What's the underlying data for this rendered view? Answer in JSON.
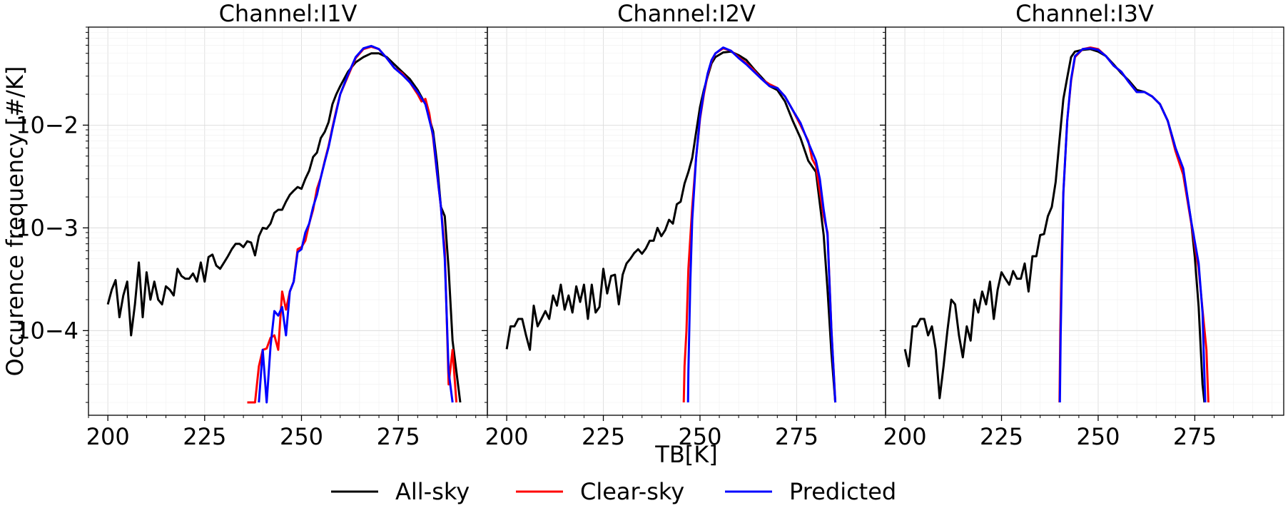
{
  "chart_data": [
    {
      "type": "line",
      "title": "Channel:I1V",
      "xlim": [
        195,
        298
      ],
      "ylim": [
        1.5e-05,
        0.09
      ],
      "yscale": "log",
      "xticks": [
        "200",
        "225",
        "250",
        "275"
      ],
      "yticks": [
        "10−4",
        "10−3",
        "10−2"
      ],
      "grid": "on (major and minor)",
      "series": [
        {
          "name": "All-sky",
          "color": "#000000",
          "x": [
            200,
            201,
            202,
            203,
            204,
            205,
            206,
            207,
            208,
            209,
            210,
            211,
            212,
            213,
            214,
            215,
            216,
            217,
            218,
            219,
            220,
            221,
            222,
            223,
            224,
            225,
            226,
            227,
            228,
            229,
            230,
            231,
            232,
            233,
            234,
            235,
            236,
            237,
            238,
            239,
            240,
            241,
            242,
            243,
            244,
            245,
            246,
            247,
            248,
            249,
            250,
            251,
            252,
            253,
            254,
            255,
            256,
            257,
            258,
            259,
            260,
            262,
            264,
            266,
            268,
            270,
            272,
            274,
            276,
            278,
            280,
            282,
            284,
            285,
            286,
            287,
            288,
            289,
            290,
            291
          ],
          "y": [
            0.00018,
            0.00025,
            0.00031,
            0.000135,
            0.00022,
            0.0003,
            9e-05,
            0.00018,
            0.00046,
            0.000135,
            0.00037,
            0.0002,
            0.0003,
            0.0002,
            0.00018,
            0.00027,
            0.00025,
            0.00022,
            0.0004,
            0.00034,
            0.00032,
            0.00032,
            0.00036,
            0.0003,
            0.00046,
            0.0003,
            0.00052,
            0.00055,
            0.00043,
            0.0004,
            0.00046,
            0.00053,
            0.00062,
            0.0007,
            0.0007,
            0.00065,
            0.00074,
            0.00072,
            0.00054,
            0.00083,
            0.001,
            0.00098,
            0.0011,
            0.0014,
            0.0015,
            0.0015,
            0.0018,
            0.0021,
            0.0023,
            0.0025,
            0.0024,
            0.003,
            0.0036,
            0.0049,
            0.0054,
            0.0075,
            0.0086,
            0.0107,
            0.016,
            0.02,
            0.024,
            0.033,
            0.041,
            0.046,
            0.05,
            0.05,
            0.046,
            0.039,
            0.033,
            0.028,
            0.022,
            0.016,
            0.0087,
            0.0043,
            0.0016,
            0.0013,
            0.0004,
            8e-05,
            4e-05,
            2e-05
          ]
        },
        {
          "name": "Clear-sky",
          "color": "#ff0000",
          "x": [
            236,
            238,
            239,
            240,
            241,
            242,
            243,
            244,
            245,
            246,
            247,
            248,
            249,
            250,
            251,
            252,
            253,
            254,
            255,
            256,
            257,
            258,
            259,
            260,
            262,
            264,
            266,
            268,
            270,
            272,
            274,
            276,
            278,
            280,
            281,
            282,
            283,
            284,
            285,
            286,
            287,
            288,
            289,
            290
          ],
          "y": [
            2e-05,
            2e-05,
            4.5e-05,
            6.5e-05,
            6.7e-05,
            8.5e-05,
            9e-05,
            6.5e-05,
            0.00024,
            0.00016,
            0.00024,
            0.0003,
            0.00062,
            0.00065,
            0.00075,
            0.0011,
            0.0015,
            0.0024,
            0.0031,
            0.0045,
            0.0063,
            0.0095,
            0.014,
            0.02,
            0.03,
            0.045,
            0.055,
            0.058,
            0.055,
            0.045,
            0.036,
            0.032,
            0.026,
            0.02,
            0.017,
            0.018,
            0.013,
            0.0075,
            0.0034,
            0.0016,
            0.00062,
            3e-05,
            6.5e-05,
            2e-05
          ]
        },
        {
          "name": "Predicted",
          "color": "#0000ff",
          "x": [
            239,
            240,
            241,
            242,
            243,
            244,
            245,
            246,
            247,
            248,
            249,
            250,
            251,
            252,
            253,
            254,
            255,
            256,
            257,
            258,
            259,
            260,
            262,
            264,
            266,
            268,
            270,
            272,
            274,
            276,
            278,
            280,
            282,
            284,
            285,
            286,
            287,
            288,
            289
          ],
          "y": [
            2e-05,
            6.5e-05,
            2e-05,
            7e-05,
            0.000155,
            0.00014,
            0.00017,
            9e-05,
            0.00024,
            0.0003,
            0.00058,
            0.00062,
            0.0009,
            0.0011,
            0.0016,
            0.0021,
            0.0031,
            0.0044,
            0.0061,
            0.0092,
            0.0135,
            0.02,
            0.031,
            0.046,
            0.056,
            0.059,
            0.055,
            0.045,
            0.036,
            0.031,
            0.026,
            0.021,
            0.016,
            0.008,
            0.0035,
            0.0016,
            0.0005,
            4e-05,
            2e-05
          ]
        }
      ]
    },
    {
      "type": "line",
      "title": "Channel:I2V",
      "xlim": [
        195,
        298
      ],
      "ylim": [
        1.5e-05,
        0.09
      ],
      "yscale": "log",
      "xticks": [
        "200",
        "225",
        "250",
        "275"
      ],
      "grid": "on (major and minor)",
      "series": [
        {
          "name": "All-sky",
          "color": "#000000",
          "x": [
            200,
            201,
            202,
            203,
            204,
            205,
            206,
            207,
            208,
            209,
            210,
            211,
            212,
            213,
            214,
            215,
            216,
            217,
            218,
            219,
            220,
            221,
            222,
            223,
            224,
            225,
            226,
            227,
            228,
            229,
            230,
            231,
            232,
            233,
            234,
            235,
            236,
            237,
            238,
            239,
            240,
            241,
            242,
            243,
            244,
            245,
            246,
            247,
            248,
            249,
            250,
            251,
            252,
            253,
            254,
            256,
            258,
            260,
            262,
            264,
            266,
            268,
            270,
            272,
            274,
            276,
            278,
            280,
            282,
            283,
            284,
            285
          ],
          "y": [
            6.6e-05,
            0.00011,
            0.00011,
            0.00013,
            0.00013,
            9e-05,
            6.5e-05,
            0.000175,
            0.00011,
            0.00013,
            0.000155,
            0.00013,
            0.00022,
            0.000175,
            0.00028,
            0.00016,
            0.00022,
            0.00015,
            0.00027,
            0.00019,
            0.00028,
            0.00013,
            0.00028,
            0.00015,
            0.00017,
            0.0004,
            0.00023,
            0.00034,
            0.00035,
            0.00018,
            0.00035,
            0.00045,
            0.0005,
            0.00057,
            0.00062,
            0.00056,
            0.00063,
            0.00075,
            0.00075,
            0.001,
            0.00083,
            0.00095,
            0.0012,
            0.0011,
            0.0017,
            0.0018,
            0.0027,
            0.0035,
            0.0048,
            0.0085,
            0.015,
            0.022,
            0.03,
            0.04,
            0.046,
            0.051,
            0.052,
            0.048,
            0.043,
            0.035,
            0.029,
            0.024,
            0.022,
            0.017,
            0.011,
            0.0075,
            0.0045,
            0.0035,
            0.00085,
            0.00025,
            6e-05,
            2e-05
          ]
        },
        {
          "name": "Clear-sky",
          "color": "#ff0000",
          "x": [
            245.8,
            246,
            246.5,
            247,
            248,
            249,
            250,
            251,
            252,
            253,
            254,
            256,
            258,
            260,
            262,
            264,
            266,
            268,
            270,
            272,
            274,
            276,
            278,
            279,
            280,
            282,
            283,
            284,
            285
          ],
          "y": [
            2e-05,
            4.5e-05,
            0.0001,
            0.0004,
            0.0016,
            0.0048,
            0.0115,
            0.02,
            0.031,
            0.042,
            0.05,
            0.056,
            0.053,
            0.046,
            0.04,
            0.034,
            0.028,
            0.025,
            0.023,
            0.019,
            0.014,
            0.01,
            0.007,
            0.0047,
            0.004,
            0.0013,
            0.0009,
            0.0001,
            2e-05
          ]
        },
        {
          "name": "Predicted",
          "color": "#0000ff",
          "x": [
            246.9,
            247,
            247.5,
            248,
            249,
            250,
            251,
            252,
            253,
            254,
            256,
            258,
            260,
            262,
            264,
            266,
            268,
            270,
            272,
            274,
            276,
            278,
            280,
            281,
            282,
            283,
            284,
            285
          ],
          "y": [
            2e-05,
            4e-05,
            0.0003,
            0.0012,
            0.0048,
            0.012,
            0.021,
            0.032,
            0.043,
            0.05,
            0.057,
            0.053,
            0.045,
            0.039,
            0.033,
            0.028,
            0.024,
            0.023,
            0.019,
            0.014,
            0.0105,
            0.0068,
            0.0045,
            0.003,
            0.0015,
            0.00085,
            0.0001,
            2e-05
          ]
        }
      ]
    },
    {
      "type": "line",
      "title": "Channel:I3V",
      "xlim": [
        195,
        298
      ],
      "ylim": [
        1.5e-05,
        0.09
      ],
      "yscale": "log",
      "xticks": [
        "200",
        "225",
        "250",
        "275"
      ],
      "grid": "on (major and minor)",
      "series": [
        {
          "name": "All-sky",
          "color": "#000000",
          "x": [
            200,
            201,
            202,
            203,
            204,
            205,
            206,
            207,
            208,
            209,
            210,
            211,
            212,
            213,
            214,
            215,
            216,
            217,
            218,
            219,
            220,
            221,
            222,
            223,
            224,
            225,
            226,
            227,
            228,
            229,
            230,
            231,
            232,
            233,
            234,
            235,
            236,
            237,
            238,
            239,
            240,
            241,
            242,
            243,
            244,
            246,
            248,
            250,
            252,
            254,
            256,
            258,
            260,
            262,
            264,
            266,
            268,
            270,
            272,
            274,
            275,
            276,
            277,
            277.5
          ],
          "y": [
            6.6e-05,
            4.5e-05,
            0.00011,
            0.00011,
            0.00013,
            0.00013,
            9e-05,
            0.00011,
            6.5e-05,
            2.2e-05,
            4.5e-05,
            0.0001,
            0.0002,
            0.00018,
            9e-05,
            5.5e-05,
            0.00011,
            8e-05,
            0.0002,
            0.00015,
            0.00024,
            0.00018,
            0.0003,
            0.00013,
            0.00025,
            0.00037,
            0.00032,
            0.00028,
            0.00038,
            0.00032,
            0.00032,
            0.00045,
            0.00024,
            0.00053,
            0.00053,
            0.00085,
            0.00087,
            0.0013,
            0.0016,
            0.0028,
            0.0072,
            0.018,
            0.029,
            0.046,
            0.052,
            0.054,
            0.055,
            0.052,
            0.047,
            0.039,
            0.032,
            0.027,
            0.022,
            0.021,
            0.019,
            0.016,
            0.011,
            0.006,
            0.0036,
            0.0012,
            0.00052,
            0.00017,
            3e-05,
            2e-05
          ]
        },
        {
          "name": "Clear-sky",
          "color": "#ff0000",
          "x": [
            240,
            240.2,
            240.6,
            241,
            242,
            243,
            244,
            246,
            248,
            250,
            252,
            254,
            256,
            258,
            260,
            262,
            264,
            266,
            268,
            270,
            272,
            274,
            276,
            277,
            278,
            278.5
          ],
          "y": [
            2e-05,
            0.0001,
            0.0006,
            0.0022,
            0.011,
            0.027,
            0.046,
            0.055,
            0.057,
            0.055,
            0.047,
            0.038,
            0.033,
            0.026,
            0.021,
            0.021,
            0.019,
            0.016,
            0.011,
            0.0056,
            0.0033,
            0.00115,
            0.0004,
            0.00016,
            6.5e-05,
            2e-05
          ]
        },
        {
          "name": "Predicted",
          "color": "#0000ff",
          "x": [
            240.1,
            240.3,
            240.7,
            241,
            242,
            243,
            244,
            246,
            248,
            250,
            252,
            254,
            256,
            258,
            260,
            262,
            264,
            266,
            268,
            270,
            272,
            274,
            276,
            277,
            277.7
          ],
          "y": [
            2e-05,
            9e-05,
            0.0006,
            0.0022,
            0.011,
            0.028,
            0.047,
            0.055,
            0.056,
            0.054,
            0.047,
            0.038,
            0.033,
            0.026,
            0.021,
            0.021,
            0.019,
            0.016,
            0.011,
            0.006,
            0.0038,
            0.0012,
            0.00045,
            0.00015,
            2e-05
          ]
        }
      ]
    }
  ],
  "xlabel": "TB[K]",
  "ylabel": "Occurence frequency [#/K]",
  "legend": {
    "placement": "bottom-center",
    "entries": [
      {
        "label": "All-sky",
        "color": "#000000"
      },
      {
        "label": "Clear-sky",
        "color": "#ff0000"
      },
      {
        "label": "Predicted",
        "color": "#0000ff"
      }
    ]
  }
}
